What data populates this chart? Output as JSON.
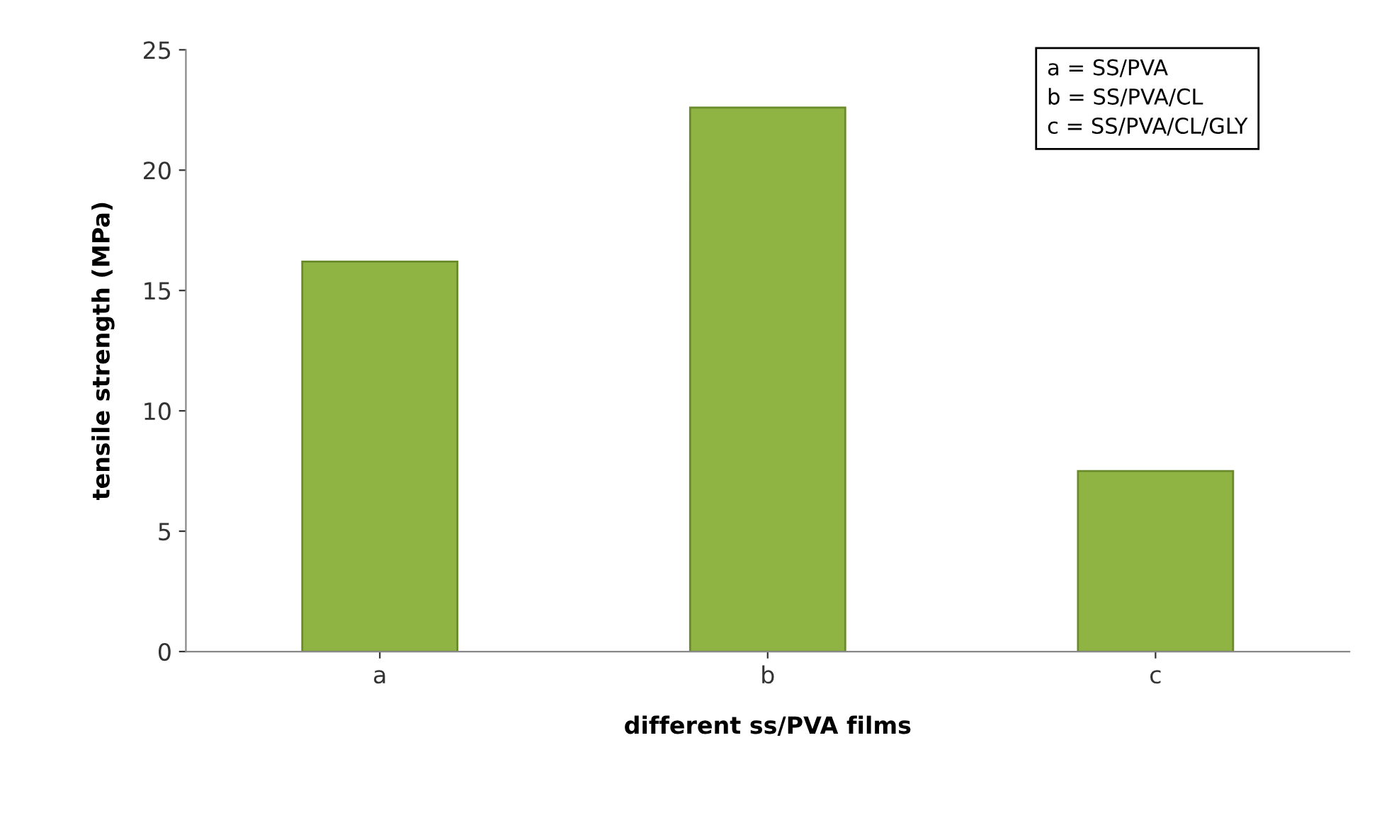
{
  "chart_data": {
    "type": "bar",
    "xlabel": "different ss/PVA films",
    "ylabel": "tensile strength (MPa)",
    "categories": [
      "a",
      "b",
      "c"
    ],
    "values": [
      16.2,
      22.6,
      7.5
    ],
    "color": "#8fb443",
    "ylim": [
      0,
      25
    ],
    "yticks": [
      0,
      5,
      10,
      15,
      20,
      25
    ],
    "grid": false,
    "annotations": [
      "a = SS/PVA",
      "b = SS/PVA/CL",
      "c = SS/PVA/CL/GLY"
    ]
  }
}
